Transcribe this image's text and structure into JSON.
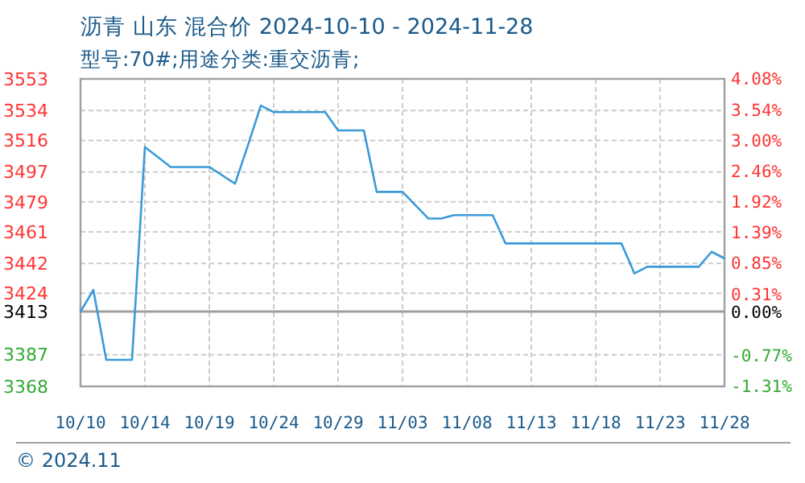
{
  "chart_data": {
    "type": "line",
    "title": "沥青 山东 混合价 2024-10-10 - 2024-11-28",
    "subtitle": "型号:70#;用途分类:重交沥青;",
    "categories": [
      "10/10",
      null,
      null,
      null,
      null,
      "10/14",
      null,
      null,
      null,
      null,
      "10/19",
      null,
      null,
      null,
      null,
      "10/24",
      null,
      null,
      null,
      null,
      "10/29",
      null,
      null,
      null,
      null,
      "11/03",
      null,
      null,
      null,
      null,
      "11/08",
      null,
      null,
      null,
      null,
      "11/13",
      null,
      null,
      null,
      null,
      "11/18",
      null,
      null,
      null,
      null,
      "11/23",
      null,
      null,
      null,
      null,
      "11/28"
    ],
    "series": [
      {
        "color": "#3a9ad9",
        "values": [
          3413,
          3426,
          3384,
          3384,
          3384,
          3512,
          3506,
          3500,
          3500,
          3500,
          3500,
          3495,
          3490,
          3513,
          3537,
          3533,
          3533,
          3533,
          3533,
          3533,
          3522,
          3522,
          3522,
          3485,
          3485,
          3485,
          3477,
          3469,
          3469,
          3471,
          3471,
          3471,
          3471,
          3454,
          3454,
          3454,
          3454,
          3454,
          3454,
          3454,
          3454,
          3454,
          3454,
          3436,
          3440,
          3440,
          3440,
          3440,
          3440,
          3449,
          3445
        ]
      }
    ],
    "ylim": [
      3368,
      3553
    ],
    "yticks": [
      3368,
      3387,
      3413,
      3424,
      3442,
      3461,
      3479,
      3497,
      3516,
      3534,
      3553
    ],
    "y2lim": [
      -1.31,
      4.08
    ],
    "y2ticks": [
      {
        "value": -1.31,
        "label": "-1.31%"
      },
      {
        "value": -0.77,
        "label": "-0.77%"
      },
      {
        "value": 0,
        "label": "0.00%"
      },
      {
        "value": 0.31,
        "label": "0.31%"
      },
      {
        "value": 0.85,
        "label": "0.85%"
      },
      {
        "value": 1.39,
        "label": "1.39%"
      },
      {
        "value": 1.92,
        "label": "1.92%"
      },
      {
        "value": 2.46,
        "label": "2.46%"
      },
      {
        "value": 3,
        "label": "3.00%"
      },
      {
        "value": 3.54,
        "label": "3.54%"
      },
      {
        "value": 4.08,
        "label": "4.08%"
      }
    ],
    "ref_lines": [
      {
        "axis": "y",
        "value": 3413,
        "color": "#a0a0a0"
      }
    ],
    "grid": true,
    "annotations": [
      "© 2024.11"
    ]
  }
}
